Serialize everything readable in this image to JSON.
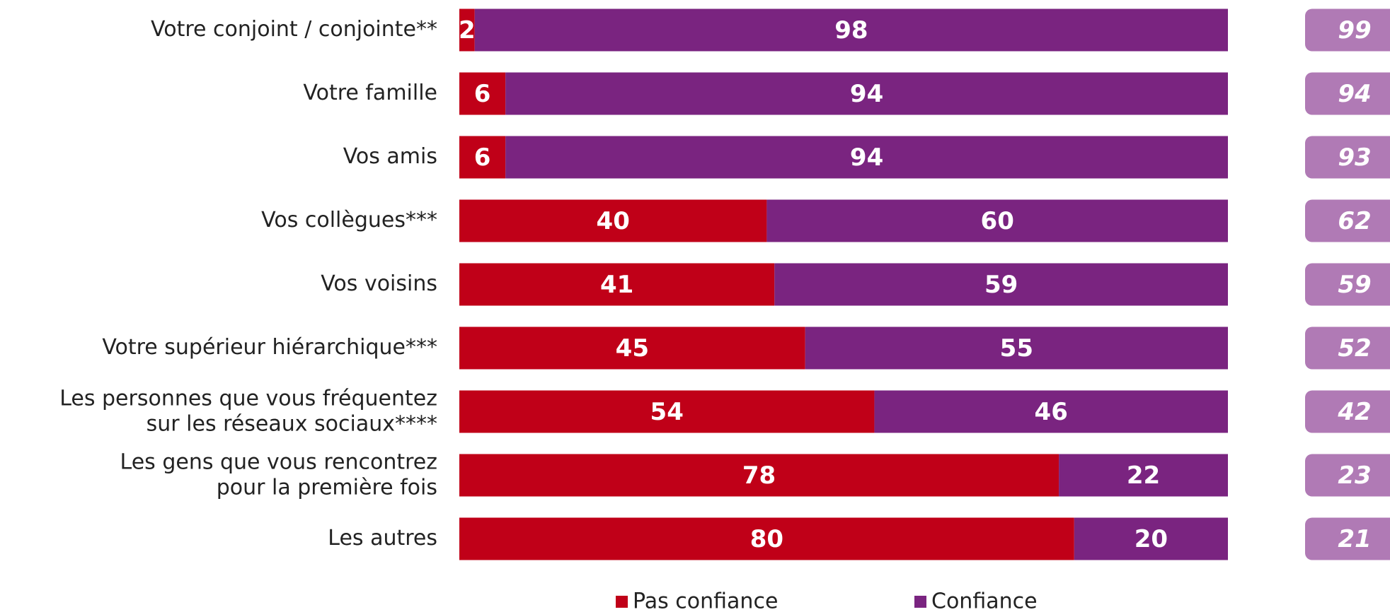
{
  "chart_data": {
    "type": "stacked-bar-horizontal",
    "categories": [
      "Votre conjoint  / conjointe**",
      "Votre famille",
      "Vos amis",
      "Vos collègues***",
      "Vos voisins",
      "Votre supérieur hiérarchique***",
      "Les personnes que vous fréquentez\nsur les réseaux sociaux****",
      "Les gens que vous rencontrez\npour la première fois",
      "Les autres"
    ],
    "series": [
      {
        "name": "Pas confiance",
        "color": "#c00018",
        "values": [
          2,
          6,
          6,
          40,
          41,
          45,
          54,
          78,
          80
        ]
      },
      {
        "name": "Confiance",
        "color": "#7a2480",
        "values": [
          98,
          94,
          94,
          60,
          59,
          55,
          46,
          22,
          20
        ]
      }
    ],
    "badges": {
      "color": "#b07ab5",
      "values": [
        99,
        94,
        93,
        62,
        59,
        52,
        42,
        23,
        21
      ]
    },
    "xlim": [
      0,
      100
    ],
    "legend": "bottom"
  }
}
